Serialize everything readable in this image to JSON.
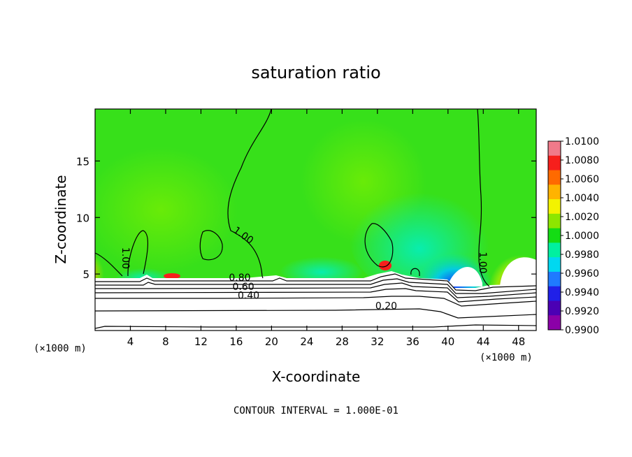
{
  "chart_data": {
    "type": "heatmap",
    "title": "saturation ratio",
    "xlabel": "X-coordinate",
    "ylabel": "Z-coordinate",
    "x_unit_label": "(×1000 m)",
    "y_unit_label": "(×1000 m)",
    "xlim": [
      0,
      50
    ],
    "ylim": [
      0,
      19.6
    ],
    "x_ticks": [
      4,
      8,
      12,
      16,
      20,
      24,
      28,
      32,
      36,
      40,
      44,
      48
    ],
    "y_ticks": [
      5,
      10,
      15
    ],
    "footer": "CONTOUR INTERVAL = 1.000E-01",
    "colorbar": {
      "ticks": [
        "1.0100",
        "1.0080",
        "1.0060",
        "1.0040",
        "1.0020",
        "1.0000",
        "0.9980",
        "0.9960",
        "0.9940",
        "0.9920",
        "0.9900"
      ],
      "colors": [
        "#f07a8a",
        "#f61f1c",
        "#ff6a00",
        "#ffb300",
        "#f3f300",
        "#8de600",
        "#14dc14",
        "#00f0a0",
        "#00d8f0",
        "#1f7aff",
        "#2020e8",
        "#4b00b4",
        "#8b00a8"
      ]
    },
    "contour_labels": [
      {
        "text": "1.00",
        "x": 16.6,
        "y": 8.2,
        "rot": 35
      },
      {
        "text": "1.00",
        "x": 3.1,
        "y": 6.4,
        "rot": 90
      },
      {
        "text": "1.00",
        "x": 43.6,
        "y": 6.0,
        "rot": 90
      },
      {
        "text": "0.80",
        "x": 16.4,
        "y": 4.4,
        "rot": 0
      },
      {
        "text": "0.60",
        "x": 16.8,
        "y": 3.6,
        "rot": 0
      },
      {
        "text": "0.40",
        "x": 17.4,
        "y": 2.8,
        "rot": 0
      },
      {
        "text": "0.20",
        "x": 33.0,
        "y": 1.9,
        "rot": 0
      }
    ]
  }
}
